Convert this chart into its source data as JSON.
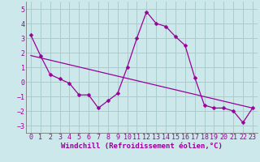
{
  "xlabel": "Windchill (Refroidissement éolien,°C)",
  "bg_color": "#cce8ea",
  "grid_color": "#aacccc",
  "line_color": "#990099",
  "xlim": [
    -0.5,
    23.5
  ],
  "ylim": [
    -3.5,
    5.5
  ],
  "yticks": [
    -3,
    -2,
    -1,
    0,
    1,
    2,
    3,
    4,
    5
  ],
  "xticks": [
    0,
    1,
    2,
    3,
    4,
    5,
    6,
    7,
    8,
    9,
    10,
    11,
    12,
    13,
    14,
    15,
    16,
    17,
    18,
    19,
    20,
    21,
    22,
    23
  ],
  "series1_x": [
    0,
    1,
    2,
    3,
    4,
    5,
    6,
    7,
    8,
    9,
    10,
    11,
    12,
    13,
    14,
    15,
    16,
    17,
    18,
    19,
    20,
    21,
    22,
    23
  ],
  "series1_y": [
    3.2,
    1.8,
    0.5,
    0.2,
    -0.1,
    -0.9,
    -0.9,
    -1.8,
    -1.3,
    -0.8,
    1.0,
    3.0,
    4.8,
    4.0,
    3.8,
    3.1,
    2.5,
    0.3,
    -1.6,
    -1.8,
    -1.8,
    -2.0,
    -2.8,
    -1.8
  ],
  "trend_x": [
    0,
    23
  ],
  "trend_y": [
    1.8,
    -1.8
  ],
  "marker_size": 2.5,
  "line_width": 0.9,
  "xlabel_fontsize": 6.5,
  "tick_fontsize": 6
}
